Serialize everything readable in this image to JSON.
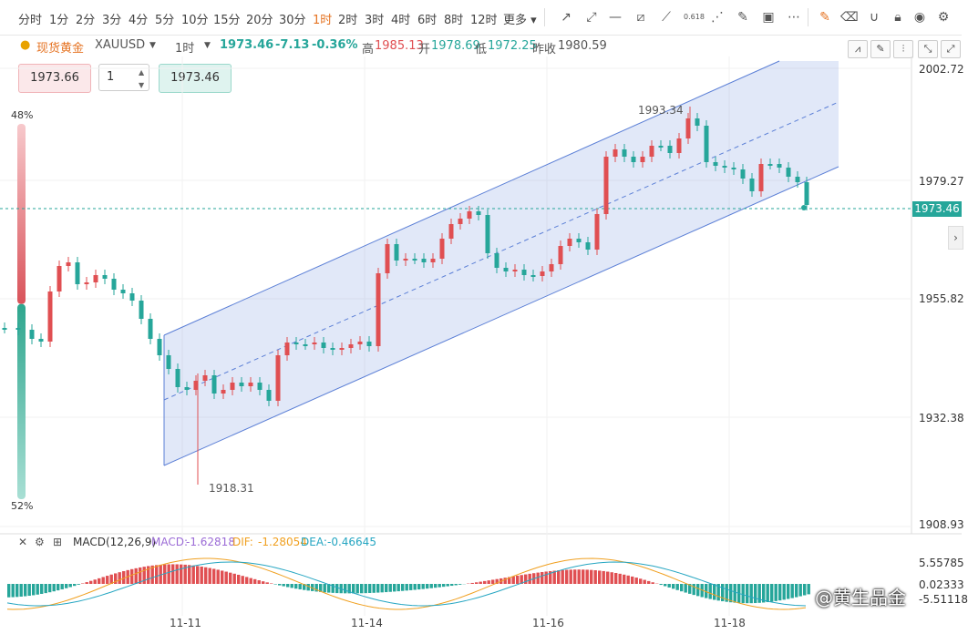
{
  "toolbar": {
    "timeframes": [
      "分时",
      "1分",
      "2分",
      "3分",
      "4分",
      "5分",
      "10分",
      "15分",
      "20分",
      "30分",
      "1时",
      "2时",
      "3时",
      "4时",
      "6时",
      "8时",
      "12时",
      "更多"
    ],
    "active_timeframe": "1时"
  },
  "info": {
    "symbol_name": "现货黄金",
    "symbol_code": "XAUUSD",
    "interval": "1时",
    "last": "1973.46",
    "change": "-7.13",
    "change_pct": "-0.36%",
    "high_label": "高",
    "high": "1985.13",
    "open_label": "开",
    "open": "1978.69",
    "low_label": "低",
    "low": "1972.25",
    "prev_label": "昨收",
    "prev": "1980.59"
  },
  "trade": {
    "sell_price": "1973.66",
    "quantity": "1",
    "buy_price": "1973.46"
  },
  "sentiment": {
    "top_pct": "48%",
    "bottom_pct": "52%",
    "long_fraction": 0.48
  },
  "y_axis": [
    "2002.72",
    "1979.27",
    "1955.82",
    "1932.38",
    "1908.93"
  ],
  "current_price_tag": "1973.46",
  "annotations": {
    "high_mark": "1993.34",
    "low_mark": "1918.31"
  },
  "x_axis": [
    "11-11",
    "11-14",
    "11-16",
    "11-18"
  ],
  "macd": {
    "title": "MACD(12,26,9)",
    "macd_label": "MACD:",
    "macd_value": "-1.62818",
    "dif_label": "DIF:",
    "dif_value": "-1.28054",
    "dea_label": "DEA:",
    "dea_value": "-0.46645",
    "y_axis": [
      "5.55785",
      "0.02333",
      "-5.51118"
    ]
  },
  "watermark": "@黄生品金",
  "colors": {
    "up": "#e04f52",
    "down": "#26a69a",
    "channel": "#5b7fd6",
    "accent": "#e57322"
  }
}
